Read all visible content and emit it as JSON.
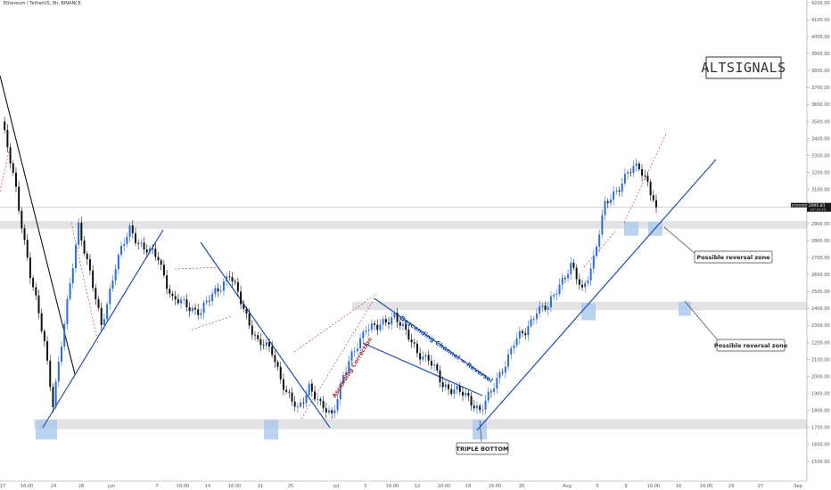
{
  "header": {
    "title": "Ethereum / TetherUS, 8h, BINANCE"
  },
  "brand": {
    "label": "ALTSIGNALS"
  },
  "price_tag": {
    "symbol": "ETHUSDT",
    "price": "2995.81",
    "time": "07:15:45"
  },
  "colors": {
    "up": "#2b6fd6",
    "down": "#111111",
    "line": "#1f4fb0",
    "zone": "#e3e3e6",
    "marker": "#a9c8ec",
    "dashed": "#b03030"
  },
  "annotations": {
    "zone1": "Possible reversal zone",
    "zone2": "Possible reversal zone",
    "triple_bottom": "TRIPLE BOTTOM",
    "channel": "Descending Channel = Reversal",
    "ascending": "Ascending Correction"
  },
  "chart_data": {
    "type": "candlestick",
    "title": "Ethereum / TetherUS, 8h, BINANCE",
    "ylim": [
      1500,
      4200
    ],
    "y_ticks": [
      "4200.00",
      "4100.00",
      "4000.00",
      "3900.00",
      "3800.00",
      "3700.00",
      "3600.00",
      "3500.00",
      "3400.00",
      "3300.00",
      "3200.00",
      "3100.00",
      "2900.00",
      "2800.00",
      "2700.00",
      "2600.00",
      "2500.00",
      "2400.00",
      "2300.00",
      "2200.00",
      "2100.00",
      "2000.00",
      "1900.00",
      "1800.00",
      "1700.00",
      "1600.00",
      "1500.00"
    ],
    "x_ticks": [
      "17",
      "16:00",
      "24",
      "28",
      "Jun",
      "7",
      "16:00",
      "14",
      "16:00",
      "21",
      "25",
      "Jul",
      "5",
      "16:00",
      "12",
      "16:00",
      "19",
      "16:00",
      "26",
      "Aug",
      "5",
      "9",
      "16:00",
      "16",
      "16:00",
      "23",
      "27",
      "Sep"
    ],
    "waypoints": [
      [
        0,
        3500
      ],
      [
        5,
        3100
      ],
      [
        10,
        2600
      ],
      [
        15,
        2200
      ],
      [
        18,
        1850
      ],
      [
        22,
        2300
      ],
      [
        27,
        2900
      ],
      [
        31,
        2600
      ],
      [
        35,
        2300
      ],
      [
        40,
        2650
      ],
      [
        45,
        2870
      ],
      [
        50,
        2750
      ],
      [
        55,
        2700
      ],
      [
        60,
        2450
      ],
      [
        65,
        2420
      ],
      [
        70,
        2380
      ],
      [
        75,
        2500
      ],
      [
        80,
        2600
      ],
      [
        85,
        2400
      ],
      [
        90,
        2200
      ],
      [
        95,
        2150
      ],
      [
        100,
        1900
      ],
      [
        104,
        1800
      ],
      [
        108,
        1950
      ],
      [
        112,
        1820
      ],
      [
        116,
        1780
      ],
      [
        120,
        2000
      ],
      [
        124,
        2150
      ],
      [
        128,
        2300
      ],
      [
        132,
        2280
      ],
      [
        138,
        2370
      ],
      [
        142,
        2250
      ],
      [
        146,
        2150
      ],
      [
        150,
        2100
      ],
      [
        155,
        1950
      ],
      [
        160,
        1920
      ],
      [
        165,
        1850
      ],
      [
        168,
        1810
      ],
      [
        172,
        1900
      ],
      [
        176,
        2050
      ],
      [
        180,
        2200
      ],
      [
        184,
        2260
      ],
      [
        188,
        2400
      ],
      [
        192,
        2400
      ],
      [
        196,
        2550
      ],
      [
        200,
        2650
      ],
      [
        204,
        2500
      ],
      [
        208,
        2700
      ],
      [
        212,
        3000
      ],
      [
        216,
        3100
      ],
      [
        220,
        3200
      ],
      [
        224,
        3230
      ],
      [
        227,
        3150
      ],
      [
        230,
        2995.81
      ]
    ]
  }
}
